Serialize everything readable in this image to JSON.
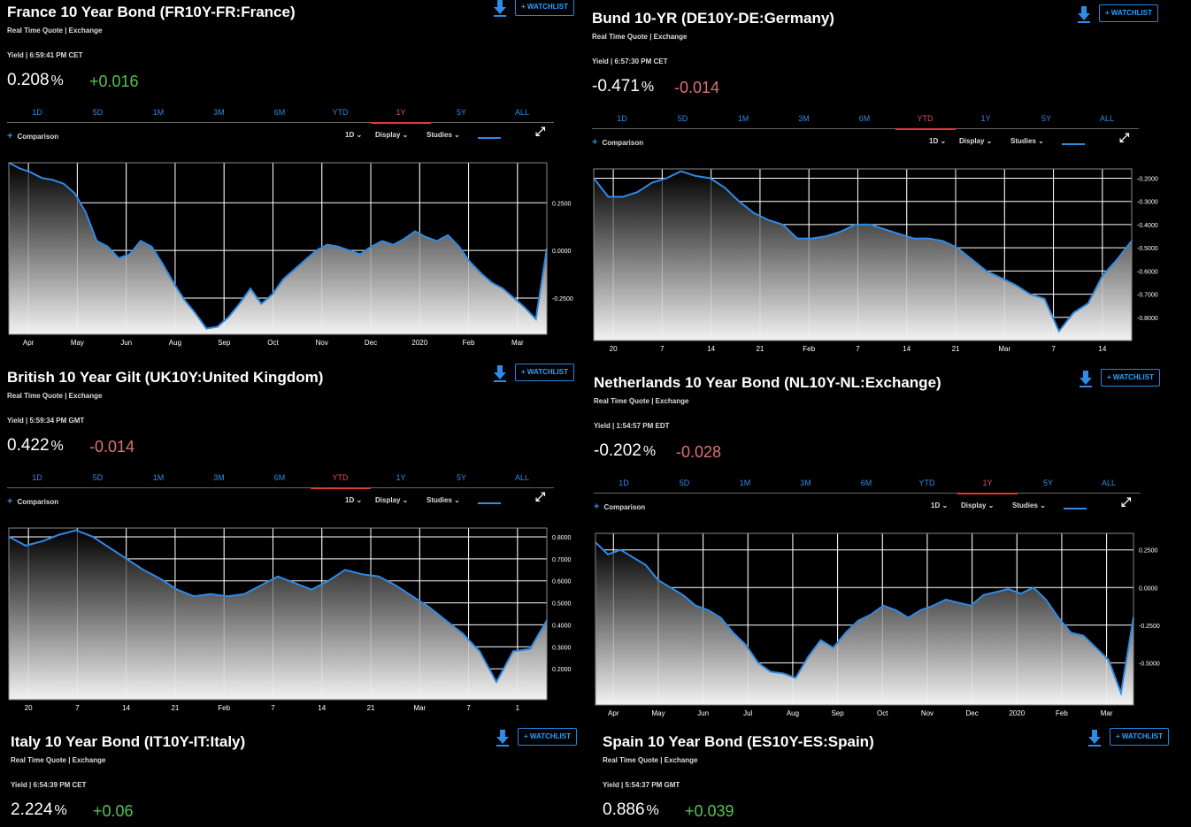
{
  "ui": {
    "sub": "Real Time Quote | Exchange",
    "watch": "+ WATCHLIST",
    "comparison": "Comparison",
    "interval": "1D ⌄",
    "display": "Display ⌄",
    "studies": "Studies ⌄",
    "pct": "%",
    "tabs": [
      "1D",
      "5D",
      "1M",
      "3M",
      "6M",
      "YTD",
      "1Y",
      "5Y",
      "ALL"
    ]
  },
  "colors": {
    "accent": "#2e8be6",
    "positive": "#52c452",
    "negative": "#e07171",
    "active_tab": "#e03838"
  },
  "panels": [
    {
      "title": "France 10 Year Bond (FR10Y-FR:France)",
      "yield_time": "Yield | 6:59:41 PM CET",
      "value": "0.208",
      "change": "+0.016",
      "dir": "pos",
      "active_tab": "1Y",
      "chart_data": {
        "type": "area",
        "y_ticks": [
          "0.2500",
          "0.0000",
          "-0.2500"
        ],
        "y_tick_values": [
          0.25,
          0,
          -0.25
        ],
        "ylim": [
          -0.44,
          0.46
        ],
        "x_ticks": [
          "Apr",
          "May",
          "Jun",
          "Aug",
          "Sep",
          "Oct",
          "Nov",
          "Dec",
          "2020",
          "Feb",
          "Mar"
        ],
        "values": [
          0.46,
          0.43,
          0.41,
          0.38,
          0.37,
          0.35,
          0.3,
          0.2,
          0.05,
          0.02,
          -0.04,
          -0.02,
          0.05,
          0.02,
          -0.07,
          -0.17,
          -0.26,
          -0.33,
          -0.41,
          -0.4,
          -0.35,
          -0.28,
          -0.2,
          -0.28,
          -0.23,
          -0.15,
          -0.1,
          -0.05,
          0.0,
          0.03,
          0.02,
          0.0,
          -0.02,
          0.02,
          0.05,
          0.03,
          0.06,
          0.1,
          0.07,
          0.05,
          0.08,
          0.02,
          -0.06,
          -0.12,
          -0.17,
          -0.2,
          -0.25,
          -0.3,
          -0.36,
          0.01
        ]
      }
    },
    {
      "title": "Bund 10-YR (DE10Y-DE:Germany)",
      "yield_time": "Yield | 6:57:30 PM CET",
      "value": "-0.471",
      "change": "-0.014",
      "dir": "neg",
      "active_tab": "YTD",
      "chart_data": {
        "type": "area",
        "y_ticks": [
          "-0.2000",
          "-0.3000",
          "-0.4000",
          "-0.5000",
          "-0.6000",
          "-0.7000",
          "-0.8000"
        ],
        "y_tick_values": [
          -0.2,
          -0.3,
          -0.4,
          -0.5,
          -0.6,
          -0.7,
          -0.8
        ],
        "ylim": [
          -0.9,
          -0.16
        ],
        "x_ticks": [
          "20",
          "7",
          "14",
          "21",
          "Feb",
          "7",
          "14",
          "21",
          "Mar",
          "7",
          "14"
        ],
        "values": [
          -0.2,
          -0.28,
          -0.28,
          -0.26,
          -0.22,
          -0.2,
          -0.17,
          -0.19,
          -0.2,
          -0.24,
          -0.3,
          -0.35,
          -0.38,
          -0.4,
          -0.46,
          -0.46,
          -0.45,
          -0.43,
          -0.4,
          -0.4,
          -0.42,
          -0.44,
          -0.46,
          -0.46,
          -0.47,
          -0.5,
          -0.55,
          -0.6,
          -0.63,
          -0.66,
          -0.7,
          -0.72,
          -0.86,
          -0.78,
          -0.74,
          -0.62,
          -0.55,
          -0.47
        ]
      }
    },
    {
      "title": "British 10 Year Gilt (UK10Y:United Kingdom)",
      "yield_time": "Yield | 5:59:34 PM GMT",
      "value": "0.422",
      "change": "-0.014",
      "dir": "neg",
      "active_tab": "YTD",
      "chart_data": {
        "type": "area",
        "y_ticks": [
          "0.8000",
          "0.7000",
          "0.6000",
          "0.5000",
          "0.4000",
          "0.3000",
          "0.2000"
        ],
        "y_tick_values": [
          0.8,
          0.7,
          0.6,
          0.5,
          0.4,
          0.3,
          0.2
        ],
        "ylim": [
          0.06,
          0.84
        ],
        "x_ticks": [
          "20",
          "7",
          "14",
          "21",
          "Feb",
          "7",
          "14",
          "21",
          "Mar",
          "7",
          "1"
        ],
        "values": [
          0.8,
          0.76,
          0.78,
          0.81,
          0.83,
          0.8,
          0.75,
          0.7,
          0.65,
          0.61,
          0.56,
          0.53,
          0.54,
          0.53,
          0.54,
          0.58,
          0.62,
          0.59,
          0.56,
          0.6,
          0.65,
          0.63,
          0.62,
          0.58,
          0.53,
          0.48,
          0.42,
          0.36,
          0.28,
          0.14,
          0.28,
          0.29,
          0.42
        ]
      }
    },
    {
      "title": "Netherlands 10 Year Bond (NL10Y-NL:Exchange)",
      "yield_time": "Yield | 1:54:57 PM EDT",
      "value": "-0.202",
      "change": "-0.028",
      "dir": "neg",
      "active_tab": "1Y",
      "chart_data": {
        "type": "area",
        "y_ticks": [
          "0.2500",
          "0.0000",
          "-0.2500",
          "-0.5000"
        ],
        "y_tick_values": [
          0.25,
          0,
          -0.25,
          -0.5
        ],
        "ylim": [
          -0.78,
          0.36
        ],
        "x_ticks": [
          "Apr",
          "May",
          "Jun",
          "Jul",
          "Aug",
          "Sep",
          "Oct",
          "Nov",
          "Dec",
          "2020",
          "Feb",
          "Mar"
        ],
        "values": [
          0.3,
          0.22,
          0.25,
          0.2,
          0.15,
          0.05,
          0.0,
          -0.05,
          -0.12,
          -0.15,
          -0.2,
          -0.3,
          -0.38,
          -0.5,
          -0.56,
          -0.57,
          -0.6,
          -0.46,
          -0.35,
          -0.4,
          -0.3,
          -0.22,
          -0.18,
          -0.12,
          -0.15,
          -0.2,
          -0.15,
          -0.12,
          -0.08,
          -0.1,
          -0.12,
          -0.05,
          -0.03,
          -0.01,
          -0.04,
          0.0,
          -0.08,
          -0.2,
          -0.3,
          -0.32,
          -0.4,
          -0.48,
          -0.7,
          -0.2
        ]
      }
    },
    {
      "title": "Italy 10 Year Bond (IT10Y-IT:Italy)",
      "yield_time": "Yield | 6:54:39 PM CET",
      "value": "2.224",
      "change": "+0.06",
      "dir": "pos"
    },
    {
      "title": "Spain 10 Year Bond (ES10Y-ES:Spain)",
      "yield_time": "Yield | 5:54:37 PM GMT",
      "value": "0.886",
      "change": "+0.039",
      "dir": "pos"
    }
  ]
}
